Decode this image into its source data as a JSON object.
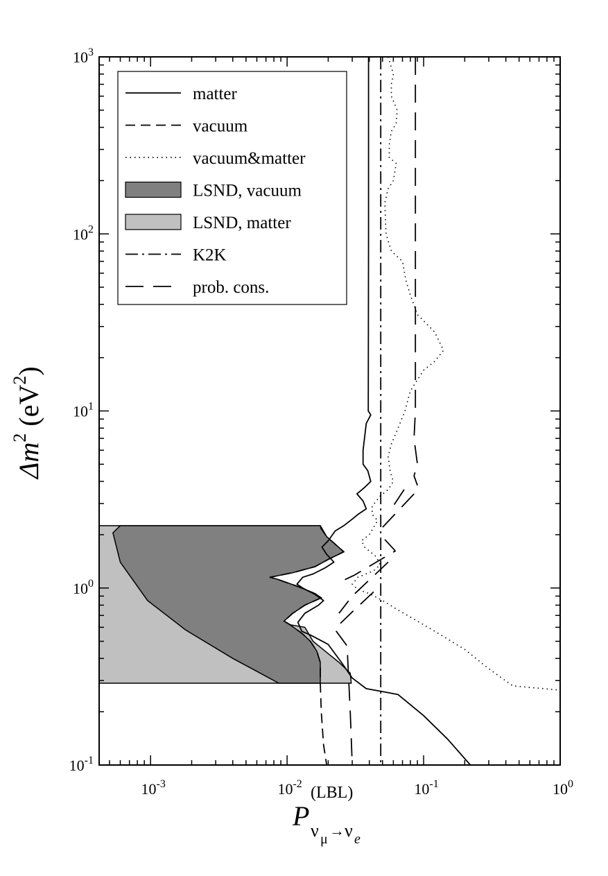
{
  "chart_data": {
    "type": "line",
    "x_scale": "log",
    "y_scale": "log",
    "xlim": [
      0.00042,
      1
    ],
    "ylim": [
      0.1,
      1000
    ],
    "xlabel": {
      "main": "P",
      "sup": "(LBL)",
      "sub_a": "ν",
      "sub_b": "μ",
      "arrow": "→",
      "sub_c": "ν",
      "sub_d": "e"
    },
    "ylabel": {
      "main": "Δm",
      "exp": "2",
      "unit_open": " (eV",
      "unit_exp": "2",
      "unit_close": ")"
    },
    "x_ticks": [
      {
        "value": 0.001,
        "base": "10",
        "exp": "-3"
      },
      {
        "value": 0.01,
        "base": "10",
        "exp": "-2"
      },
      {
        "value": 0.1,
        "base": "10",
        "exp": "-1"
      },
      {
        "value": 1,
        "base": "10",
        "exp": "0"
      }
    ],
    "y_ticks": [
      {
        "value": 0.1,
        "base": "10",
        "exp": "-1"
      },
      {
        "value": 1,
        "base": "10",
        "exp": "0"
      },
      {
        "value": 10,
        "base": "10",
        "exp": "1"
      },
      {
        "value": 100,
        "base": "10",
        "exp": "2"
      },
      {
        "value": 1000,
        "base": "10",
        "exp": "3"
      }
    ],
    "legend_position": "top-left",
    "legend": [
      {
        "key": "matter",
        "label": "matter",
        "style": "solid"
      },
      {
        "key": "vacuum",
        "label": "vacuum",
        "style": "dashed"
      },
      {
        "key": "vm",
        "label": "vacuum&matter",
        "style": "dotted"
      },
      {
        "key": "lsnd_vac",
        "label": "LSND, vacuum",
        "style": "fill-dark"
      },
      {
        "key": "lsnd_mat",
        "label": "LSND, matter",
        "style": "fill-light"
      },
      {
        "key": "k2k",
        "label": "K2K",
        "style": "dashdot"
      },
      {
        "key": "pc",
        "label": "prob. cons.",
        "style": "longdash"
      }
    ],
    "colors": {
      "lsnd_vacuum_fill": "#808080",
      "lsnd_matter_fill": "#c0c0c0",
      "line": "#000000"
    },
    "series": [
      {
        "key": "matter",
        "points": [
          [
            0.0395,
            1000
          ],
          [
            0.0395,
            100
          ],
          [
            0.0393,
            10
          ],
          [
            0.041,
            9.5
          ],
          [
            0.038,
            8.5
          ],
          [
            0.036,
            6
          ],
          [
            0.036,
            5
          ],
          [
            0.039,
            4.6
          ],
          [
            0.041,
            4
          ],
          [
            0.037,
            3.7
          ],
          [
            0.0325,
            3.4
          ],
          [
            0.036,
            3.1
          ],
          [
            0.038,
            2.8
          ],
          [
            0.033,
            2.6
          ],
          [
            0.03,
            2.45
          ],
          [
            0.026,
            2.25
          ],
          [
            0.0225,
            2.1
          ],
          [
            0.02,
            1.85
          ],
          [
            0.018,
            1.7
          ],
          [
            0.0195,
            1.55
          ],
          [
            0.022,
            1.4
          ],
          [
            0.019,
            1.3
          ],
          [
            0.0155,
            1.2
          ],
          [
            0.013,
            1.15
          ],
          [
            0.0118,
            1.05
          ],
          [
            0.013,
            1
          ],
          [
            0.016,
            0.92
          ],
          [
            0.0185,
            0.85
          ],
          [
            0.017,
            0.8
          ],
          [
            0.0135,
            0.72
          ],
          [
            0.012,
            0.64
          ],
          [
            0.0128,
            0.57
          ],
          [
            0.015,
            0.54
          ],
          [
            0.02,
            0.48
          ],
          [
            0.025,
            0.38
          ],
          [
            0.03,
            0.31
          ],
          [
            0.038,
            0.27
          ],
          [
            0.05,
            0.26
          ],
          [
            0.065,
            0.25
          ],
          [
            0.1,
            0.19
          ],
          [
            0.15,
            0.14
          ],
          [
            0.22,
            0.1
          ]
        ]
      },
      {
        "key": "vacuum",
        "points": [
          [
            0.0175,
            2.2
          ],
          [
            0.0195,
            1.95
          ],
          [
            0.026,
            1.6
          ],
          [
            0.02,
            1.45
          ],
          [
            0.016,
            1.32
          ],
          [
            0.011,
            1.22
          ],
          [
            0.0075,
            1.15
          ],
          [
            0.0085,
            1.12
          ],
          [
            0.012,
            1.02
          ],
          [
            0.016,
            0.93
          ],
          [
            0.0178,
            0.88
          ],
          [
            0.0135,
            0.8
          ],
          [
            0.011,
            0.72
          ],
          [
            0.0095,
            0.65
          ],
          [
            0.0105,
            0.62
          ],
          [
            0.013,
            0.55
          ],
          [
            0.0148,
            0.5
          ],
          [
            0.0165,
            0.44
          ],
          [
            0.0175,
            0.38
          ],
          [
            0.0175,
            0.29
          ],
          [
            0.0178,
            0.2
          ],
          [
            0.0185,
            0.13
          ],
          [
            0.0195,
            0.1
          ]
        ]
      },
      {
        "key": "vm",
        "points": [
          [
            0.055,
            1000
          ],
          [
            0.06,
            800
          ],
          [
            0.058,
            700
          ],
          [
            0.058,
            600
          ],
          [
            0.064,
            500
          ],
          [
            0.063,
            420
          ],
          [
            0.058,
            380
          ],
          [
            0.056,
            320
          ],
          [
            0.056,
            270
          ],
          [
            0.063,
            250
          ],
          [
            0.06,
            200
          ],
          [
            0.055,
            180
          ],
          [
            0.052,
            150
          ],
          [
            0.053,
            100
          ],
          [
            0.058,
            80
          ],
          [
            0.07,
            70
          ],
          [
            0.074,
            55
          ],
          [
            0.08,
            45
          ],
          [
            0.09,
            35
          ],
          [
            0.12,
            28
          ],
          [
            0.14,
            22
          ],
          [
            0.12,
            19
          ],
          [
            0.1,
            17
          ],
          [
            0.08,
            13
          ],
          [
            0.073,
            10
          ],
          [
            0.065,
            8
          ],
          [
            0.058,
            6.5
          ],
          [
            0.055,
            5.5
          ],
          [
            0.057,
            4.5
          ],
          [
            0.06,
            4
          ],
          [
            0.055,
            3.6
          ],
          [
            0.048,
            3.3
          ],
          [
            0.042,
            2.9
          ],
          [
            0.042,
            2.6
          ],
          [
            0.046,
            2.4
          ],
          [
            0.043,
            2.2
          ],
          [
            0.04,
            2
          ],
          [
            0.035,
            1.85
          ],
          [
            0.037,
            1.7
          ],
          [
            0.045,
            1.5
          ],
          [
            0.048,
            1.35
          ],
          [
            0.043,
            1.25
          ],
          [
            0.033,
            1.15
          ],
          [
            0.03,
            1.05
          ],
          [
            0.033,
            0.98
          ],
          [
            0.04,
            0.93
          ],
          [
            0.05,
            0.85
          ],
          [
            0.065,
            0.75
          ],
          [
            0.09,
            0.65
          ],
          [
            0.13,
            0.55
          ],
          [
            0.2,
            0.45
          ],
          [
            0.3,
            0.35
          ],
          [
            0.45,
            0.28
          ],
          [
            1,
            0.265
          ]
        ]
      },
      {
        "key": "k2k",
        "points": [
          [
            0.0485,
            1000
          ],
          [
            0.0485,
            0.1
          ]
        ]
      },
      {
        "key": "pc_right",
        "points": [
          [
            0.087,
            1000
          ],
          [
            0.087,
            10
          ],
          [
            0.085,
            7
          ],
          [
            0.09,
            5
          ],
          [
            0.085,
            4.3
          ],
          [
            0.09,
            3.8
          ]
        ]
      },
      {
        "key": "pc_seg1",
        "points": [
          [
            0.072,
            3.6
          ],
          [
            0.058,
            2.8
          ]
        ]
      },
      {
        "key": "pc_seg2",
        "points": [
          [
            0.085,
            3.4
          ],
          [
            0.05,
            2.2
          ],
          [
            0.047,
            2.1
          ]
        ]
      },
      {
        "key": "pc_seg3",
        "points": [
          [
            0.052,
            1.88
          ],
          [
            0.062,
            1.62
          ],
          [
            0.031,
            1.18
          ],
          [
            0.0255,
            1.1
          ]
        ]
      },
      {
        "key": "pc_seg4",
        "points": [
          [
            0.055,
            1.4
          ],
          [
            0.03,
            0.9
          ],
          [
            0.024,
            0.72
          ]
        ]
      },
      {
        "key": "pc_lower",
        "points": [
          [
            0.043,
            0.95
          ],
          [
            0.031,
            0.75
          ],
          [
            0.024,
            0.62
          ],
          [
            0.0225,
            0.58
          ],
          [
            0.025,
            0.52
          ],
          [
            0.0275,
            0.47
          ],
          [
            0.028,
            0.35
          ],
          [
            0.029,
            0.2
          ],
          [
            0.03,
            0.1
          ]
        ]
      }
    ],
    "regions": [
      {
        "key": "lsnd_matter",
        "y_range": [
          0.29,
          2.25
        ],
        "x_min": 0.00042,
        "right_boundary": [
          [
            0.0175,
            2.25
          ],
          [
            0.0195,
            1.95
          ],
          [
            0.026,
            1.6
          ],
          [
            0.02,
            1.45
          ],
          [
            0.016,
            1.32
          ],
          [
            0.011,
            1.22
          ],
          [
            0.0075,
            1.15
          ],
          [
            0.0085,
            1.12
          ],
          [
            0.012,
            1.02
          ],
          [
            0.016,
            0.93
          ],
          [
            0.0178,
            0.88
          ],
          [
            0.0135,
            0.8
          ],
          [
            0.011,
            0.72
          ],
          [
            0.0095,
            0.65
          ],
          [
            0.0105,
            0.62
          ],
          [
            0.0135,
            0.6
          ],
          [
            0.0155,
            0.5
          ],
          [
            0.019,
            0.44
          ],
          [
            0.024,
            0.38
          ],
          [
            0.029,
            0.33
          ],
          [
            0.0295,
            0.29
          ]
        ]
      },
      {
        "key": "lsnd_vacuum",
        "boundary": [
          [
            0.0006,
            2.25
          ],
          [
            0.0175,
            2.25
          ],
          [
            0.0195,
            1.95
          ],
          [
            0.026,
            1.6
          ],
          [
            0.02,
            1.45
          ],
          [
            0.016,
            1.32
          ],
          [
            0.011,
            1.22
          ],
          [
            0.0075,
            1.15
          ],
          [
            0.0085,
            1.12
          ],
          [
            0.012,
            1.02
          ],
          [
            0.016,
            0.93
          ],
          [
            0.0178,
            0.88
          ],
          [
            0.0135,
            0.8
          ],
          [
            0.011,
            0.72
          ],
          [
            0.0095,
            0.65
          ],
          [
            0.0105,
            0.62
          ],
          [
            0.013,
            0.55
          ],
          [
            0.0148,
            0.5
          ],
          [
            0.0165,
            0.44
          ],
          [
            0.0175,
            0.38
          ],
          [
            0.0175,
            0.29
          ],
          [
            0.0087,
            0.29
          ],
          [
            0.004,
            0.4
          ],
          [
            0.0018,
            0.58
          ],
          [
            0.00095,
            0.85
          ],
          [
            0.0006,
            1.4
          ],
          [
            0.00053,
            2.05
          ]
        ]
      }
    ]
  }
}
